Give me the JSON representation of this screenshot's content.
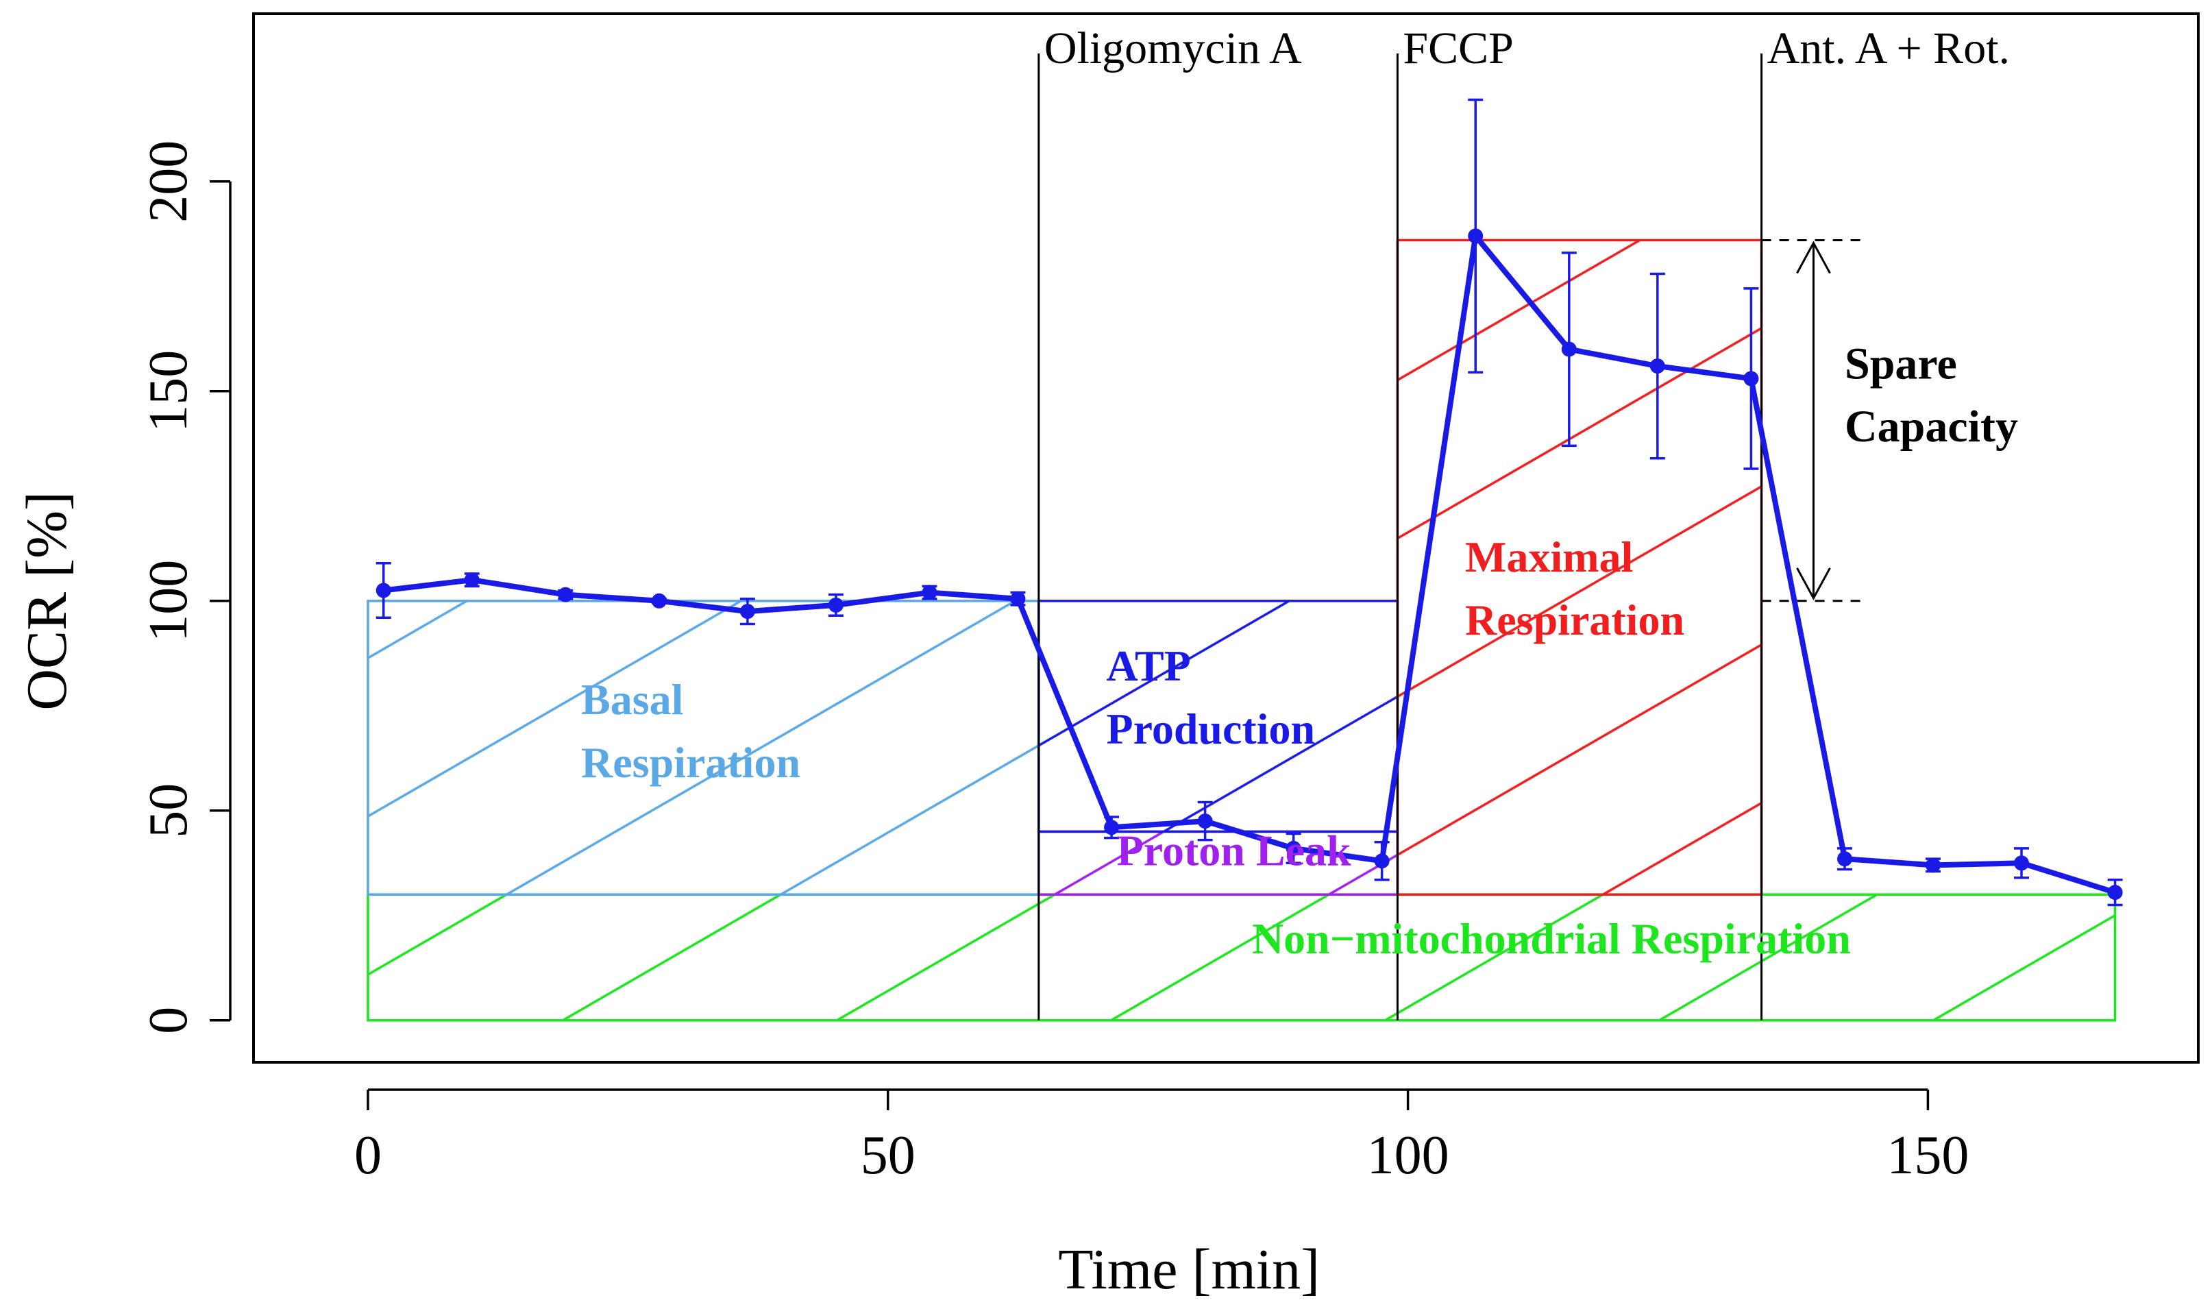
{
  "chart_data": {
    "type": "line",
    "title": "",
    "xlabel": "Time [min]",
    "ylabel": "OCR [%]",
    "xlim": [
      -11,
      176
    ],
    "ylim": [
      -10,
      240
    ],
    "xticks": [
      0,
      50,
      100,
      150
    ],
    "yticks": [
      0,
      50,
      100,
      150,
      200
    ],
    "grid": false,
    "series": [
      {
        "name": "OCR",
        "color": "#1a1ae6",
        "x": [
          1.5,
          10,
          19,
          28,
          36.5,
          45,
          54,
          62.5,
          71.5,
          80.5,
          89,
          97.5,
          106.5,
          115.5,
          124,
          133,
          142,
          150.5,
          159,
          168
        ],
        "values": [
          102.5,
          105,
          101.5,
          100,
          97.5,
          99,
          102,
          100.5,
          46,
          47.5,
          41,
          38,
          187,
          160,
          156,
          153,
          38.5,
          37,
          37.5,
          30.5
        ],
        "error": [
          6.5,
          1.5,
          1,
          0.5,
          3,
          2.5,
          1.5,
          1.5,
          2.5,
          4.5,
          3.5,
          4.5,
          32.5,
          23,
          22,
          21.5,
          2.5,
          1.5,
          3.5,
          3
        ]
      }
    ],
    "events": [
      {
        "x": 64.5,
        "label": "Oligomycin A"
      },
      {
        "x": 99,
        "label": "FCCP"
      },
      {
        "x": 134,
        "label": "Ant. A + Rot."
      }
    ],
    "regions": [
      {
        "name": "Non−mitochondrial  Respiration",
        "x0": 0,
        "x1": 168,
        "y0": 0,
        "y1": 30,
        "color": "#1ee61e",
        "lines": [
          "Non−mitochondrial  Respiration"
        ],
        "label_x": 85,
        "label_y": 16
      },
      {
        "name": "Basal Respiration",
        "x0": 0,
        "x1": 64.5,
        "y0": 30,
        "y1": 100,
        "color": "#5aa9e6",
        "lines": [
          "Basal",
          "Respiration"
        ],
        "label_x": 20.5,
        "label_y": 73
      },
      {
        "name": "Proton Leak",
        "x0": 64.5,
        "x1": 99,
        "y0": 30,
        "y1": 45,
        "color": "#a020f0",
        "lines": [
          "Proton Leak"
        ],
        "label_x": 72,
        "label_y": 37
      },
      {
        "name": "ATP Production",
        "x0": 64.5,
        "x1": 99,
        "y0": 45,
        "y1": 100,
        "color": "#1a1ae6",
        "lines": [
          "ATP",
          "Production"
        ],
        "label_x": 71,
        "label_y": 81
      },
      {
        "name": "Maximal Respiration",
        "x0": 99,
        "x1": 134,
        "y0": 30,
        "y1": 186,
        "color": "#f01e1e",
        "lines": [
          "Maximal",
          "Respiration"
        ],
        "label_x": 105.5,
        "label_y": 107
      }
    ],
    "annotations": [
      {
        "text": "Spare",
        "x": 142,
        "y": 153
      },
      {
        "text": "Capacity",
        "x": 142,
        "y": 138
      }
    ],
    "spare_capacity": {
      "x": 139,
      "y0": 100,
      "y1": 186,
      "dash_x0": 134,
      "dash_x1": 144
    }
  }
}
